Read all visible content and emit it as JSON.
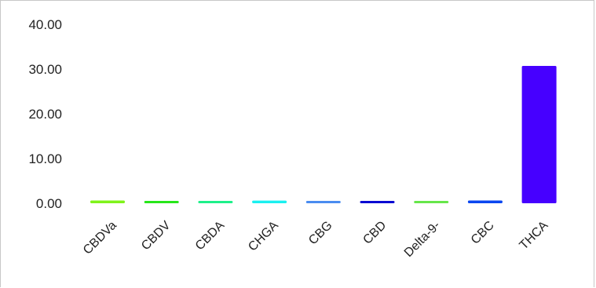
{
  "chart_data": {
    "type": "bar",
    "categories": [
      "CBDVa",
      "CBDV",
      "CBDA",
      "CHGA",
      "CBG",
      "CBD",
      "Delta-9-",
      "CBC",
      "THCA"
    ],
    "values": [
      0.62,
      0.38,
      0.35,
      0.6,
      0.4,
      0.42,
      0.12,
      0.62,
      30.7
    ],
    "colors": [
      "#7ff31a",
      "#27e61a",
      "#1ef08a",
      "#1af0f0",
      "#4a8cf0",
      "#0a0ad2",
      "#66e64a",
      "#0a46f0",
      "#4600ff"
    ],
    "ylim": [
      0,
      40
    ],
    "yticks": [
      "0.00",
      "10.00",
      "20.00",
      "30.00",
      "40.00"
    ],
    "ytick_values": [
      0,
      10,
      20,
      30,
      40
    ],
    "grid": false,
    "legend": "none"
  }
}
